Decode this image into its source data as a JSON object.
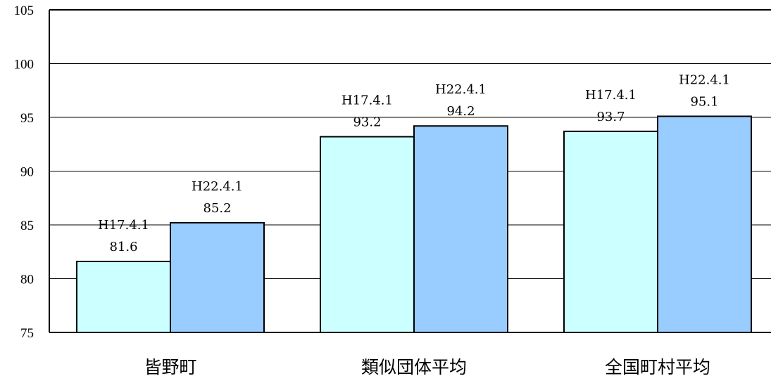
{
  "chart_data": {
    "type": "bar",
    "categories": [
      "皆野町",
      "類似団体平均",
      "全国町村平均"
    ],
    "series": [
      {
        "values": [
          81.6,
          93.2,
          93.7
        ],
        "point_label": "H17.4.1"
      },
      {
        "values": [
          85.2,
          94.2,
          95.1
        ],
        "point_label": "H22.4.1"
      }
    ],
    "y_ticks": [
      "105",
      "100",
      "95",
      "90",
      "85",
      "80",
      "75"
    ],
    "ylim": [
      75,
      105
    ],
    "grid": true,
    "legend": "none",
    "colors": [
      "#ccffff",
      "#99ccff"
    ],
    "grid_color": "#000000",
    "border_color": "#000000"
  }
}
